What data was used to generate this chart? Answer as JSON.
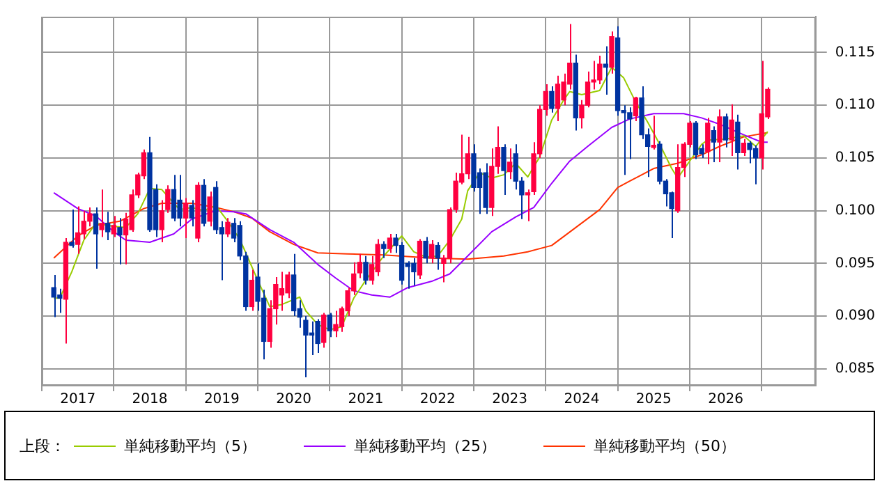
{
  "chart_data": {
    "type": "candlestick",
    "x": [
      "2016-09",
      "2016-10",
      "2016-11",
      "2016-12",
      "2017-01",
      "2017-02",
      "2017-03",
      "2017-04",
      "2017-05",
      "2017-06",
      "2017-07",
      "2017-08",
      "2017-09",
      "2017-10",
      "2017-11",
      "2017-12",
      "2018-01",
      "2018-02",
      "2018-03",
      "2018-04",
      "2018-05",
      "2018-06",
      "2018-07",
      "2018-08",
      "2018-09",
      "2018-10",
      "2018-11",
      "2018-12",
      "2019-01",
      "2019-02",
      "2019-03",
      "2019-04",
      "2019-05",
      "2019-06",
      "2019-07",
      "2019-08",
      "2019-09",
      "2019-10",
      "2019-11",
      "2019-12",
      "2020-01",
      "2020-02",
      "2020-03",
      "2020-04",
      "2020-05",
      "2020-06",
      "2020-07",
      "2020-08",
      "2020-09",
      "2020-10",
      "2020-11",
      "2020-12",
      "2021-01",
      "2021-02",
      "2021-03",
      "2021-04",
      "2021-05",
      "2021-06",
      "2021-07",
      "2021-08",
      "2021-09",
      "2021-10",
      "2021-11",
      "2021-12",
      "2022-01",
      "2022-02",
      "2022-03",
      "2022-04",
      "2022-05",
      "2022-06",
      "2022-07",
      "2022-08",
      "2022-09",
      "2022-10",
      "2022-11",
      "2022-12",
      "2023-01",
      "2023-02",
      "2023-03",
      "2023-04",
      "2023-05",
      "2023-06",
      "2023-07",
      "2023-08",
      "2023-09",
      "2023-10",
      "2023-11",
      "2023-12",
      "2024-01",
      "2024-02",
      "2024-03",
      "2024-04",
      "2024-05",
      "2024-06",
      "2024-07",
      "2024-08",
      "2024-09",
      "2024-10",
      "2024-11",
      "2024-12",
      "2025-01",
      "2025-02",
      "2025-03",
      "2025-04",
      "2025-05",
      "2025-06",
      "2025-07",
      "2025-08",
      "2025-09",
      "2025-10",
      "2025-11",
      "2025-12",
      "2026-01",
      "2026-02",
      "2026-03",
      "2026-04",
      "2026-05",
      "2026-06",
      "2026-07",
      "2026-08"
    ],
    "ohlc": [
      [
        0.0927,
        0.0939,
        0.0899,
        0.0918
      ],
      [
        0.092,
        0.0926,
        0.0903,
        0.0917
      ],
      [
        0.0916,
        0.0974,
        0.0874,
        0.097
      ],
      [
        0.097,
        0.1001,
        0.0965,
        0.0967
      ],
      [
        0.0968,
        0.1004,
        0.0959,
        0.0979
      ],
      [
        0.0978,
        0.1,
        0.0973,
        0.099
      ],
      [
        0.099,
        0.1003,
        0.0985,
        0.0997
      ],
      [
        0.0997,
        0.1003,
        0.0945,
        0.0978
      ],
      [
        0.0982,
        0.102,
        0.0975,
        0.0988
      ],
      [
        0.0988,
        0.0999,
        0.0972,
        0.098
      ],
      [
        0.0978,
        0.0995,
        0.0975,
        0.0986
      ],
      [
        0.0984,
        0.0993,
        0.0949,
        0.0977
      ],
      [
        0.0977,
        0.0998,
        0.0949,
        0.0992
      ],
      [
        0.0982,
        0.102,
        0.098,
        0.1015
      ],
      [
        0.1015,
        0.1036,
        0.1012,
        0.1034
      ],
      [
        0.1033,
        0.1058,
        0.103,
        0.1055
      ],
      [
        0.1055,
        0.107,
        0.098,
        0.0982
      ],
      [
        0.102,
        0.1025,
        0.0975,
        0.0982
      ],
      [
        0.0982,
        0.101,
        0.097,
        0.1
      ],
      [
        0.1001,
        0.1024,
        0.0998,
        0.102
      ],
      [
        0.102,
        0.1034,
        0.099,
        0.0993
      ],
      [
        0.101,
        0.1034,
        0.0985,
        0.0993
      ],
      [
        0.0993,
        0.1012,
        0.0974,
        0.1007
      ],
      [
        0.1005,
        0.101,
        0.0985,
        0.0993
      ],
      [
        0.0974,
        0.1027,
        0.097,
        0.1024
      ],
      [
        0.1024,
        0.103,
        0.0985,
        0.0988
      ],
      [
        0.099,
        0.1018,
        0.0985,
        0.1013
      ],
      [
        0.1022,
        0.1028,
        0.0978,
        0.0982
      ],
      [
        0.0984,
        0.099,
        0.0934,
        0.0978
      ],
      [
        0.0978,
        0.0993,
        0.0975,
        0.0989
      ],
      [
        0.0988,
        0.0993,
        0.097,
        0.0974
      ],
      [
        0.0986,
        0.099,
        0.0953,
        0.0957
      ],
      [
        0.0957,
        0.0961,
        0.0905,
        0.0909
      ],
      [
        0.0909,
        0.0944,
        0.0905,
        0.0934
      ],
      [
        0.0937,
        0.095,
        0.0905,
        0.0914
      ],
      [
        0.0917,
        0.0925,
        0.0859,
        0.0876
      ],
      [
        0.0876,
        0.0915,
        0.087,
        0.0907
      ],
      [
        0.0907,
        0.0937,
        0.0892,
        0.093
      ],
      [
        0.092,
        0.0942,
        0.0905,
        0.0926
      ],
      [
        0.0922,
        0.0942,
        0.0917,
        0.0939
      ],
      [
        0.0939,
        0.0959,
        0.09,
        0.0905
      ],
      [
        0.0907,
        0.0915,
        0.0889,
        0.0899
      ],
      [
        0.0896,
        0.09,
        0.0842,
        0.0882
      ],
      [
        0.0884,
        0.0895,
        0.0863,
        0.0882
      ],
      [
        0.0895,
        0.0897,
        0.0865,
        0.0874
      ],
      [
        0.0875,
        0.0903,
        0.087,
        0.0901
      ],
      [
        0.0901,
        0.0903,
        0.088,
        0.0886
      ],
      [
        0.0886,
        0.0905,
        0.088,
        0.0892
      ],
      [
        0.089,
        0.0909,
        0.0885,
        0.0907
      ],
      [
        0.0905,
        0.0927,
        0.09,
        0.0924
      ],
      [
        0.0924,
        0.0951,
        0.092,
        0.094
      ],
      [
        0.0941,
        0.0959,
        0.0936,
        0.0951
      ],
      [
        0.0951,
        0.0957,
        0.093,
        0.0934
      ],
      [
        0.0934,
        0.0957,
        0.093,
        0.0949
      ],
      [
        0.0942,
        0.0973,
        0.0938,
        0.0968
      ],
      [
        0.0968,
        0.0971,
        0.0955,
        0.0964
      ],
      [
        0.0964,
        0.0978,
        0.096,
        0.0974
      ],
      [
        0.0974,
        0.0978,
        0.096,
        0.0967
      ],
      [
        0.0967,
        0.097,
        0.093,
        0.0934
      ],
      [
        0.095,
        0.0952,
        0.0926,
        0.0947
      ],
      [
        0.095,
        0.0955,
        0.0929,
        0.0942
      ],
      [
        0.0939,
        0.0973,
        0.0935,
        0.0971
      ],
      [
        0.0971,
        0.0975,
        0.095,
        0.0955
      ],
      [
        0.0955,
        0.0972,
        0.095,
        0.0968
      ],
      [
        0.0967,
        0.097,
        0.0944,
        0.0955
      ],
      [
        0.095,
        0.0958,
        0.0932,
        0.0955
      ],
      [
        0.0955,
        0.1003,
        0.095,
        0.1001
      ],
      [
        0.1001,
        0.1036,
        0.0998,
        0.1028
      ],
      [
        0.1027,
        0.1072,
        0.1025,
        0.1035
      ],
      [
        0.1035,
        0.107,
        0.103,
        0.1054
      ],
      [
        0.1054,
        0.1063,
        0.1018,
        0.1022
      ],
      [
        0.1036,
        0.104,
        0.0997,
        0.1022
      ],
      [
        0.1036,
        0.1045,
        0.0997,
        0.1003
      ],
      [
        0.1003,
        0.1059,
        0.0995,
        0.1042
      ],
      [
        0.1042,
        0.108,
        0.1035,
        0.106
      ],
      [
        0.106,
        0.1063,
        0.1015,
        0.1038
      ],
      [
        0.1037,
        0.1059,
        0.103,
        0.1046
      ],
      [
        0.1054,
        0.1063,
        0.102,
        0.1028
      ],
      [
        0.1028,
        0.1032,
        0.0992,
        0.1015
      ],
      [
        0.1015,
        0.102,
        0.099,
        0.1017
      ],
      [
        0.1018,
        0.1065,
        0.1015,
        0.1054
      ],
      [
        0.1054,
        0.11,
        0.105,
        0.1096
      ],
      [
        0.1096,
        0.112,
        0.109,
        0.1113
      ],
      [
        0.1113,
        0.1118,
        0.1093,
        0.1097
      ],
      [
        0.1097,
        0.1128,
        0.1085,
        0.112
      ],
      [
        0.1105,
        0.113,
        0.11,
        0.1122
      ],
      [
        0.112,
        0.1177,
        0.1115,
        0.114
      ],
      [
        0.114,
        0.1148,
        0.1076,
        0.1088
      ],
      [
        0.1088,
        0.1105,
        0.1078,
        0.11
      ],
      [
        0.11,
        0.1132,
        0.1098,
        0.1122
      ],
      [
        0.1122,
        0.1142,
        0.1115,
        0.1124
      ],
      [
        0.1124,
        0.1147,
        0.112,
        0.1139
      ],
      [
        0.1139,
        0.1156,
        0.111,
        0.1136
      ],
      [
        0.1136,
        0.117,
        0.113,
        0.1165
      ],
      [
        0.1164,
        0.1175,
        0.109,
        0.1095
      ],
      [
        0.1095,
        0.11,
        0.1034,
        0.1093
      ],
      [
        0.1093,
        0.1098,
        0.1049,
        0.1087
      ],
      [
        0.109,
        0.1108,
        0.1085,
        0.1107
      ],
      [
        0.1107,
        0.1118,
        0.1068,
        0.1072
      ],
      [
        0.1072,
        0.1078,
        0.1032,
        0.1061
      ],
      [
        0.106,
        0.109,
        0.1058,
        0.1062
      ],
      [
        0.1063,
        0.1066,
        0.1025,
        0.1028
      ],
      [
        0.1028,
        0.103,
        0.1004,
        0.1016
      ],
      [
        0.1017,
        0.1018,
        0.0974,
        0.1002
      ],
      [
        0.1,
        0.1063,
        0.0998,
        0.1041
      ],
      [
        0.1041,
        0.1065,
        0.1032,
        0.1063
      ],
      [
        0.1063,
        0.1085,
        0.106,
        0.1083
      ],
      [
        0.1083,
        0.1085,
        0.1049,
        0.1053
      ],
      [
        0.1059,
        0.1063,
        0.105,
        0.1054
      ],
      [
        0.1056,
        0.1088,
        0.1044,
        0.1083
      ],
      [
        0.1076,
        0.108,
        0.1046,
        0.1065
      ],
      [
        0.1065,
        0.1096,
        0.1046,
        0.1089
      ],
      [
        0.1089,
        0.1092,
        0.106,
        0.1067
      ],
      [
        0.1067,
        0.1101,
        0.1052,
        0.1086
      ],
      [
        0.1084,
        0.1091,
        0.1039,
        0.1055
      ],
      [
        0.1055,
        0.1068,
        0.1052,
        0.1064
      ],
      [
        0.1064,
        0.1066,
        0.1045,
        0.1058
      ],
      [
        0.1059,
        0.1062,
        0.1025,
        0.105
      ],
      [
        0.105,
        0.1142,
        0.1039,
        0.1092
      ],
      [
        0.1089,
        0.1117,
        0.1087,
        0.1115
      ]
    ],
    "colors": [
      "#0033a0",
      "#0033a0",
      "#ff0040",
      "#0033a0",
      "#ff0040",
      "#ff0040",
      "#ff0040",
      "#0033a0",
      "#ff0040",
      "#0033a0",
      "#ff0040",
      "#0033a0",
      "#ff0040",
      "#ff0040",
      "#ff0040",
      "#ff0040",
      "#0033a0",
      "#0033a0",
      "#ff0040",
      "#ff0040",
      "#0033a0",
      "#0033a0",
      "#ff0040",
      "#0033a0",
      "#ff0040",
      "#0033a0",
      "#ff0040",
      "#0033a0",
      "#0033a0",
      "#ff0040",
      "#0033a0",
      "#0033a0",
      "#0033a0",
      "#ff0040",
      "#0033a0",
      "#0033a0",
      "#ff0040",
      "#ff0040",
      "#ff0040",
      "#ff0040",
      "#0033a0",
      "#0033a0",
      "#0033a0",
      "#0033a0",
      "#0033a0",
      "#ff0040",
      "#0033a0",
      "#ff0040",
      "#ff0040",
      "#ff0040",
      "#ff0040",
      "#ff0040",
      "#0033a0",
      "#ff0040",
      "#ff0040",
      "#0033a0",
      "#ff0040",
      "#0033a0",
      "#0033a0",
      "#0033a0",
      "#0033a0",
      "#ff0040",
      "#0033a0",
      "#ff0040",
      "#0033a0",
      "#ff0040",
      "#ff0040",
      "#ff0040",
      "#ff0040",
      "#ff0040",
      "#0033a0",
      "#0033a0",
      "#0033a0",
      "#ff0040",
      "#ff0040",
      "#0033a0",
      "#ff0040",
      "#0033a0",
      "#0033a0",
      "#ff0040",
      "#ff0040",
      "#ff0040",
      "#ff0040",
      "#0033a0",
      "#ff0040",
      "#ff0040",
      "#ff0040",
      "#0033a0",
      "#ff0040",
      "#ff0040",
      "#ff0040",
      "#ff0040",
      "#0033a0",
      "#ff0040",
      "#0033a0",
      "#0033a0",
      "#0033a0",
      "#ff0040",
      "#0033a0",
      "#0033a0",
      "#ff0040",
      "#0033a0",
      "#0033a0",
      "#0033a0",
      "#ff0040",
      "#ff0040",
      "#ff0040",
      "#0033a0",
      "#0033a0",
      "#ff0040",
      "#0033a0",
      "#ff0040",
      "#0033a0",
      "#ff0040",
      "#0033a0",
      "#ff0040",
      "#0033a0",
      "#0033a0",
      "#ff0040",
      "#ff0040"
    ],
    "series": [
      {
        "type": "line",
        "name": "単純移動平均（5）",
        "color": "#99cc00",
        "x": [
          "2016-09",
          "2016-10",
          "2016-12",
          "2017-02",
          "2017-04",
          "2017-07",
          "2017-09",
          "2017-11",
          "2018-01",
          "2018-03",
          "2018-05",
          "2018-06",
          "2018-08",
          "2018-10",
          "2018-12",
          "2019-02",
          "2019-04",
          "2019-07",
          "2019-09",
          "2019-11",
          "2020-02",
          "2020-03",
          "2020-05",
          "2020-07",
          "2020-09",
          "2020-11",
          "2021-01",
          "2021-04",
          "2021-07",
          "2021-09",
          "2021-11",
          "2022-01",
          "2022-03",
          "2022-05",
          "2022-06",
          "2022-08",
          "2022-10",
          "2022-12",
          "2023-02",
          "2023-04",
          "2023-06",
          "2023-08",
          "2023-10",
          "2023-11",
          "2024-01",
          "2024-04",
          "2024-06",
          "2024-08",
          "2024-10",
          "2024-12",
          "2025-02",
          "2025-04",
          "2025-05",
          "2025-07",
          "2025-09",
          "2025-10",
          "2026-01",
          "2026-04",
          "2026-06",
          "2026-08"
        ],
        "values": [
          0.0917,
          0.0917,
          0.0942,
          0.0972,
          0.0988,
          0.0985,
          0.0984,
          0.0997,
          0.1021,
          0.102,
          0.1007,
          0.1001,
          0.1003,
          0.1,
          0.1005,
          0.099,
          0.0973,
          0.0934,
          0.0909,
          0.0911,
          0.0918,
          0.0905,
          0.0892,
          0.0887,
          0.089,
          0.0917,
          0.0934,
          0.0957,
          0.0976,
          0.0961,
          0.0956,
          0.0957,
          0.0972,
          0.0992,
          0.1019,
          0.1036,
          0.1031,
          0.1034,
          0.1045,
          0.1032,
          0.1051,
          0.1086,
          0.1105,
          0.1113,
          0.111,
          0.1114,
          0.1136,
          0.1126,
          0.1103,
          0.1084,
          0.1063,
          0.104,
          0.1031,
          0.1047,
          0.1063,
          0.1067,
          0.1068,
          0.1071,
          0.1061,
          0.1075
        ]
      },
      {
        "type": "line",
        "name": "単純移動平均（25）",
        "color": "#9900ff",
        "x": [
          "2016-09",
          "2017-01",
          "2017-04",
          "2017-07",
          "2017-09",
          "2018-01",
          "2018-05",
          "2018-08",
          "2018-12",
          "2019-03",
          "2019-05",
          "2019-09",
          "2020-01",
          "2020-05",
          "2020-08",
          "2020-11",
          "2021-02",
          "2021-05",
          "2021-08",
          "2021-12",
          "2022-03",
          "2022-06",
          "2022-10",
          "2023-02",
          "2023-05",
          "2023-08",
          "2023-11",
          "2024-02",
          "2024-06",
          "2024-09",
          "2025-01",
          "2025-06",
          "2025-09",
          "2025-12",
          "2026-04",
          "2026-07",
          "2026-08"
        ],
        "values": [
          0.1017,
          0.1002,
          0.0995,
          0.098,
          0.0972,
          0.097,
          0.0978,
          0.0992,
          0.1,
          0.0999,
          0.0997,
          0.0982,
          0.097,
          0.0949,
          0.0936,
          0.0924,
          0.092,
          0.0918,
          0.0927,
          0.0933,
          0.094,
          0.0957,
          0.098,
          0.0994,
          0.1003,
          0.1026,
          0.1047,
          0.1061,
          0.1079,
          0.1087,
          0.1092,
          0.1092,
          0.1088,
          0.1082,
          0.1072,
          0.1065,
          0.1065
        ]
      },
      {
        "type": "line",
        "name": "単純移動平均（50）",
        "color": "#ff3300",
        "x": [
          "2016-09",
          "2017-01",
          "2017-04",
          "2017-08",
          "2017-12",
          "2018-03",
          "2018-08",
          "2018-12",
          "2019-03",
          "2019-06",
          "2019-09",
          "2020-01",
          "2020-05",
          "2020-10",
          "2021-04",
          "2021-12",
          "2022-06",
          "2022-12",
          "2023-04",
          "2023-08",
          "2023-12",
          "2024-04",
          "2024-07",
          "2024-09",
          "2025-01",
          "2025-05",
          "2025-09",
          "2025-12",
          "2026-04",
          "2026-08"
        ],
        "values": [
          0.0955,
          0.0976,
          0.0986,
          0.099,
          0.1002,
          0.1007,
          0.1007,
          0.1003,
          0.0999,
          0.0993,
          0.098,
          0.0968,
          0.096,
          0.0959,
          0.0958,
          0.0955,
          0.0954,
          0.0957,
          0.0961,
          0.0967,
          0.0984,
          0.1001,
          0.1022,
          0.1028,
          0.104,
          0.1045,
          0.1053,
          0.1061,
          0.107,
          0.1074
        ]
      }
    ],
    "xlim": [
      "2016-07",
      "2027-04"
    ],
    "xticks": [
      {
        "value": "2017-01",
        "label": "2017"
      },
      {
        "value": "2018-01",
        "label": "2018"
      },
      {
        "value": "2019-01",
        "label": "2019"
      },
      {
        "value": "2020-01",
        "label": "2020"
      },
      {
        "value": "2021-01",
        "label": "2021"
      },
      {
        "value": "2022-01",
        "label": "2022"
      },
      {
        "value": "2023-01",
        "label": "2023"
      },
      {
        "value": "2024-01",
        "label": "2024"
      },
      {
        "value": "2025-01",
        "label": "2025"
      },
      {
        "value": "2026-01",
        "label": "2026"
      }
    ],
    "ylim": [
      0.0834,
      0.1184
    ],
    "yticks": [
      {
        "value": 0.085,
        "label": "0.085"
      },
      {
        "value": 0.09,
        "label": "0.090"
      },
      {
        "value": 0.095,
        "label": "0.095"
      },
      {
        "value": 0.1,
        "label": "0.100"
      },
      {
        "value": 0.105,
        "label": "0.105"
      },
      {
        "value": 0.11,
        "label": "0.110"
      },
      {
        "value": 0.115,
        "label": "0.115"
      }
    ],
    "grid": true,
    "legend": "bottom",
    "legend_title": "上段：",
    "marker": "none"
  }
}
